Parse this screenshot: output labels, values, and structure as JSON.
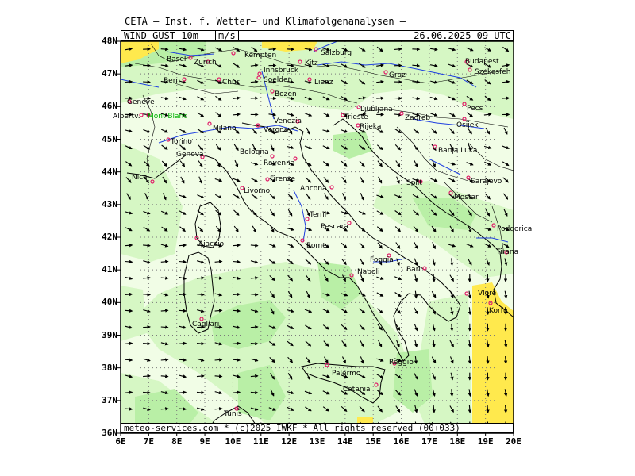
{
  "header": {
    "title": "CETA — Inst. f. Wetter— und Klimafolgenanalysen —",
    "field": "WIND GUST 10m",
    "unit": "m/s",
    "datetime": "26.06.2025 09 UTC"
  },
  "footer": {
    "credit": "meteo-services.com * (c)2025 IWKF * All rights reserved (00+033)"
  },
  "axes": {
    "lat_labels": [
      "48N",
      "47N",
      "46N",
      "45N",
      "44N",
      "43N",
      "42N",
      "41N",
      "40N",
      "39N",
      "38N",
      "37N",
      "36N"
    ],
    "lon_labels": [
      "6E",
      "7E",
      "8E",
      "9E",
      "10E",
      "11E",
      "12E",
      "13E",
      "14E",
      "15E",
      "16E",
      "17E",
      "18E",
      "19E",
      "20E"
    ]
  },
  "colors": {
    "background_field": "#f1fde6",
    "light_green": "#d6f7c4",
    "medium_green": "#b9efa6",
    "yellow": "#ffe94d",
    "city_marker": "#e0206a",
    "river": "#1f3fe0",
    "highlight_label": "#00b000"
  },
  "cities": [
    {
      "name": "Salzburg"
    },
    {
      "name": "Kempten"
    },
    {
      "name": "Basel"
    },
    {
      "name": "Zürich"
    },
    {
      "name": "Bern"
    },
    {
      "name": "Innsbruck"
    },
    {
      "name": "Kitz"
    },
    {
      "name": "Chur"
    },
    {
      "name": "Soelden"
    },
    {
      "name": "Lienz"
    },
    {
      "name": "Graz"
    },
    {
      "name": "Budapest"
    },
    {
      "name": "Szekesfeh"
    },
    {
      "name": "Geneve"
    },
    {
      "name": "Albertv."
    },
    {
      "name": "Mont Blanc"
    },
    {
      "name": "Bozen"
    },
    {
      "name": "Ljubljana"
    },
    {
      "name": "Zagreb"
    },
    {
      "name": "Pecs"
    },
    {
      "name": "Milano"
    },
    {
      "name": "Venezia"
    },
    {
      "name": "Verona"
    },
    {
      "name": "Trieste"
    },
    {
      "name": "Rijeka"
    },
    {
      "name": "Osijek"
    },
    {
      "name": "Torino"
    },
    {
      "name": "Banja Luka"
    },
    {
      "name": "Genova"
    },
    {
      "name": "Bologna"
    },
    {
      "name": "Ravenna"
    },
    {
      "name": "Nice"
    },
    {
      "name": "Firenze"
    },
    {
      "name": "Livorno"
    },
    {
      "name": "Ancona"
    },
    {
      "name": "Split"
    },
    {
      "name": "Sarajevo"
    },
    {
      "name": "Mostar"
    },
    {
      "name": "Terni"
    },
    {
      "name": "Pescara"
    },
    {
      "name": "Podgorica"
    },
    {
      "name": "Ajaccio"
    },
    {
      "name": "Rome"
    },
    {
      "name": "Foggia"
    },
    {
      "name": "Tirana"
    },
    {
      "name": "Bari"
    },
    {
      "name": "Napoli"
    },
    {
      "name": "Vlore"
    },
    {
      "name": "Korfu"
    },
    {
      "name": "Cagliari"
    },
    {
      "name": "Palermo"
    },
    {
      "name": "Reggio"
    },
    {
      "name": "Catania"
    },
    {
      "name": "Tunis"
    }
  ]
}
